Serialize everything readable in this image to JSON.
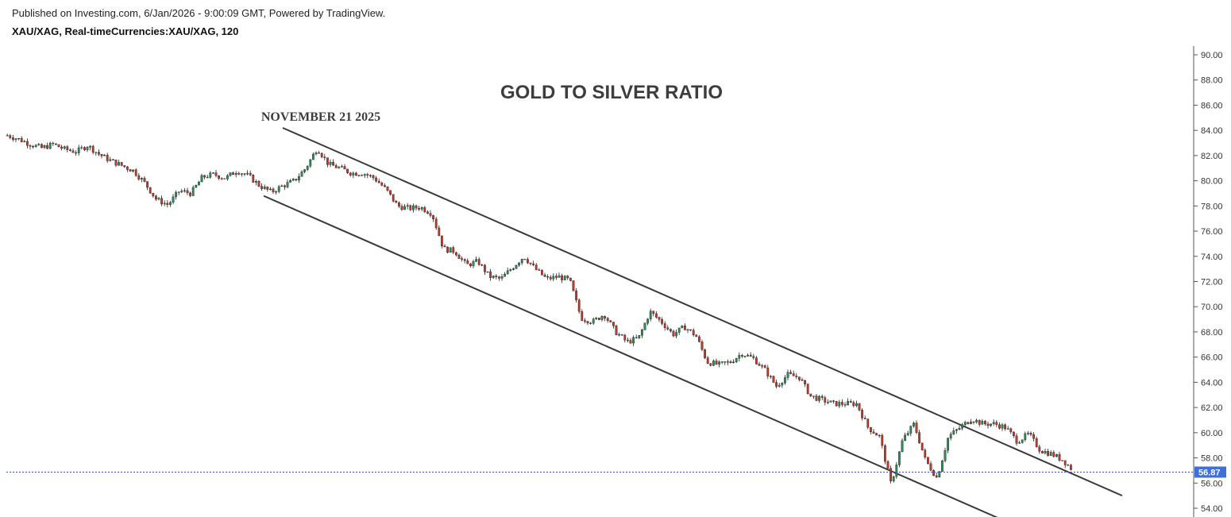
{
  "header": {
    "published": "Published on Investing.com, 6/Jan/2026 - 9:00:09 GMT, Powered by TradingView.",
    "symbol": "XAU/XAG, Real-timeCurrencies:XAU/XAG, 120"
  },
  "colors": {
    "up": "#2e8b57",
    "down": "#c0392b",
    "wick": "#222222",
    "trendline": "#3a3a3a",
    "last_price_line": "#3f51b5",
    "last_price_badge": "#3f6fd8"
  },
  "chart_data": {
    "type": "line",
    "title": "GOLD TO SILVER RATIO",
    "annotations": [
      {
        "text": "NOVEMBER 21 2025"
      }
    ],
    "ylim": [
      53,
      91
    ],
    "yticks": [
      54,
      56,
      58,
      60,
      62,
      64,
      66,
      68,
      70,
      72,
      74,
      76,
      78,
      80,
      82,
      84,
      86,
      88,
      90
    ],
    "ytick_labels": [
      "54.00",
      "56.00",
      "58.00",
      "60.00",
      "62.00",
      "64.00",
      "66.00",
      "68.00",
      "70.00",
      "72.00",
      "74.00",
      "76.00",
      "78.00",
      "80.00",
      "82.00",
      "84.00",
      "86.00",
      "88.00",
      "90.00"
    ],
    "y_axis_position": "right",
    "grid": false,
    "last_value": 56.87,
    "last_value_label": "56.87",
    "series": [
      {
        "values": [
          83.6,
          83.3,
          82.9,
          82.6,
          82.9,
          82.5,
          82.3,
          82.8,
          82.1,
          81.6,
          81.2,
          80.8,
          79.8,
          78.5,
          78.1,
          79.2,
          79.0,
          80.3,
          80.5,
          80.2,
          80.8,
          80.4,
          79.6,
          79.1,
          79.6,
          80.0,
          81.0,
          82.6,
          81.3,
          81.0,
          80.6,
          80.6,
          80.2,
          79.3,
          78.0,
          77.8,
          77.9,
          77.4,
          74.6,
          74.4,
          73.3,
          73.6,
          72.4,
          72.2,
          73.1,
          74.0,
          73.0,
          72.2,
          72.4,
          72.1,
          69.1,
          68.8,
          69.4,
          68.0,
          67.2,
          67.5,
          69.6,
          68.8,
          67.8,
          68.4,
          67.7,
          65.6,
          65.4,
          65.6,
          66.3,
          65.9,
          65.0,
          63.7,
          64.6,
          64.4,
          62.9,
          62.6,
          62.3,
          62.3,
          62.3,
          60.4,
          59.7,
          55.9,
          59.4,
          60.7,
          57.8,
          56.4,
          59.7,
          60.4,
          61.1,
          60.7,
          60.7,
          60.4,
          59.3,
          59.9,
          58.6,
          58.3,
          57.8,
          56.87
        ],
        "points_note": "values are sampled approximately every ~14.5 px of the original time axis (120-minute bars aggregated)"
      }
    ],
    "trend_channel": {
      "upper_line": {
        "start": 84.2,
        "end": 55.0
      },
      "lower_line": {
        "start": 78.8,
        "end": 53.0
      }
    }
  }
}
